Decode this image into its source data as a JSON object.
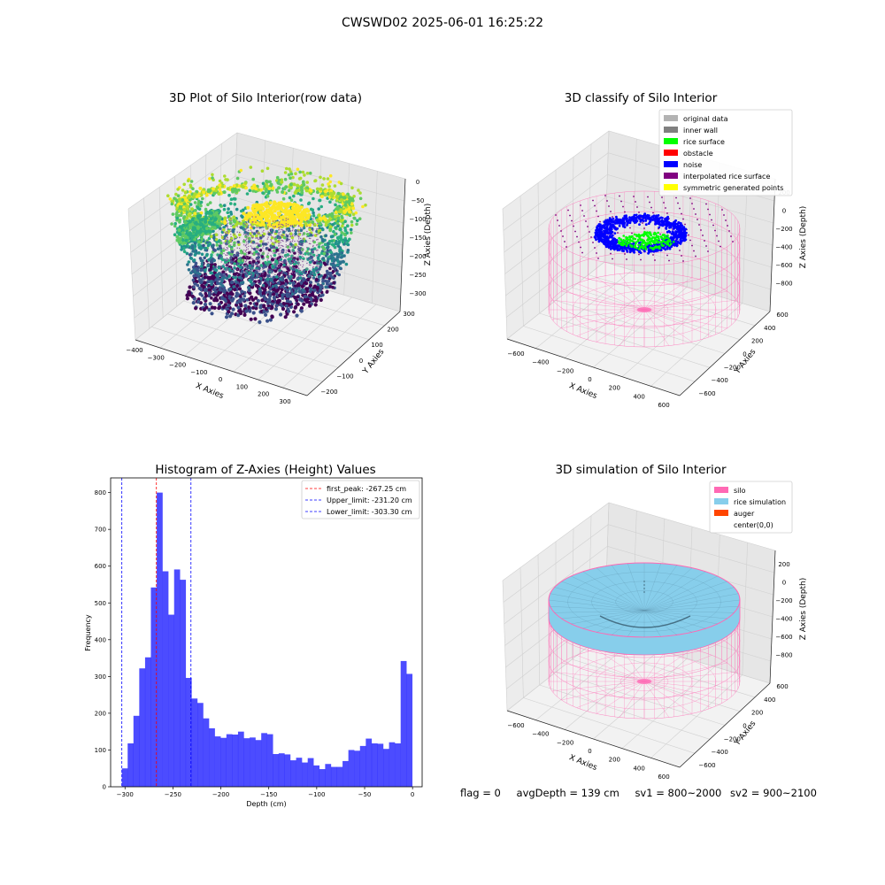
{
  "figure_title": "CWSWD02 2025-06-01 16:25:22",
  "footer": {
    "flag": "flag = 0",
    "avg_depth": "avgDepth = 139 cm",
    "sv1": "sv1 = 800~2000",
    "sv2": "sv2 = 900~2100"
  },
  "chart_data": [
    {
      "type": "scatter",
      "title": "3D Plot of Silo Interior(row data)",
      "xlabel": "X Axies",
      "ylabel": "Y Axies",
      "zlabel": "Z Axies (Depth)",
      "x_ticks": [
        "−400",
        "−300",
        "−200",
        "−100",
        "0",
        "100",
        "200",
        "300"
      ],
      "y_ticks": [
        "−200",
        "−100",
        "0",
        "100",
        "200",
        "300"
      ],
      "z_ticks": [
        "0",
        "−50",
        "−100",
        "−150",
        "−200",
        "−250",
        "−300"
      ],
      "xlim": [
        -400,
        350
      ],
      "ylim": [
        -250,
        350
      ],
      "zlim": [
        -330,
        10
      ],
      "colormap": "viridis",
      "grid": true
    },
    {
      "type": "scatter",
      "title": "3D classify of Silo Interior",
      "xlabel": "X Axies",
      "ylabel": "Y Axies",
      "zlabel": "Z Axies (Depth)",
      "x_ticks": [
        "−600",
        "−400",
        "−200",
        "0",
        "200",
        "400",
        "600"
      ],
      "y_ticks": [
        "−600",
        "−400",
        "−200",
        "0",
        "200",
        "400",
        "600"
      ],
      "z_ticks": [
        "200",
        "0",
        "−200",
        "−400",
        "−600",
        "−800"
      ],
      "legend_position": "top-right",
      "legend": [
        {
          "label": "original data",
          "color": "#b3b3b3"
        },
        {
          "label": "inner wall",
          "color": "#808080"
        },
        {
          "label": "rice surface",
          "color": "#00ff00"
        },
        {
          "label": "obstacle",
          "color": "#ff0000"
        },
        {
          "label": "noise",
          "color": "#0000ff"
        },
        {
          "label": "interpolated rice surface",
          "color": "#800080"
        },
        {
          "label": "symmetric generated points",
          "color": "#ffff00"
        }
      ],
      "grid": true
    },
    {
      "type": "bar",
      "title": "Histogram of Z-Axies (Height) Values",
      "xlabel": "Depth (cm)",
      "ylabel": "Frequency",
      "xlim": [
        -315,
        10
      ],
      "ylim": [
        0,
        840
      ],
      "x_ticks": [
        -300,
        -250,
        -200,
        -150,
        -100,
        -50,
        0
      ],
      "y_ticks": [
        0,
        100,
        200,
        300,
        400,
        500,
        600,
        700,
        800
      ],
      "bin_start": -303.3,
      "bin_width": 6.06,
      "values": [
        50,
        118,
        193,
        322,
        352,
        542,
        800,
        586,
        468,
        591,
        563,
        296,
        240,
        228,
        186,
        159,
        137,
        133,
        143,
        142,
        150,
        132,
        134,
        127,
        146,
        143,
        89,
        91,
        88,
        72,
        79,
        66,
        78,
        58,
        48,
        62,
        54,
        54,
        70,
        100,
        98,
        111,
        131,
        118,
        117,
        103,
        121,
        118,
        342,
        307
      ],
      "color": "#0000ff",
      "vlines": [
        {
          "label": "first_peak: -267.25 cm",
          "x": -267.25,
          "color": "#ff0000"
        },
        {
          "label": "Upper_limit: -231.20 cm",
          "x": -231.2,
          "color": "#0000ff"
        },
        {
          "label": "Lower_limit: -303.30 cm",
          "x": -303.3,
          "color": "#0000ff"
        }
      ],
      "legend_position": "top-right",
      "grid": false
    },
    {
      "type": "scatter",
      "title": "3D simulation of Silo Interior",
      "xlabel": "X Axies",
      "ylabel": "Y Axies",
      "zlabel": "Z Axies (Depth)",
      "x_ticks": [
        "−600",
        "−400",
        "−200",
        "0",
        "200",
        "400",
        "600"
      ],
      "y_ticks": [
        "−600",
        "−400",
        "−200",
        "0",
        "200",
        "400",
        "600"
      ],
      "z_ticks": [
        "200",
        "0",
        "−200",
        "−400",
        "−600",
        "−800"
      ],
      "legend_position": "top-right",
      "legend": [
        {
          "label": "silo",
          "color": "#ff69b4"
        },
        {
          "label": "rice simulation",
          "color": "#87ceeb"
        },
        {
          "label": "auger",
          "color": "#ff4500"
        },
        {
          "label": "center(0,0)",
          "color": "#ffffff"
        }
      ],
      "grid": true
    }
  ]
}
